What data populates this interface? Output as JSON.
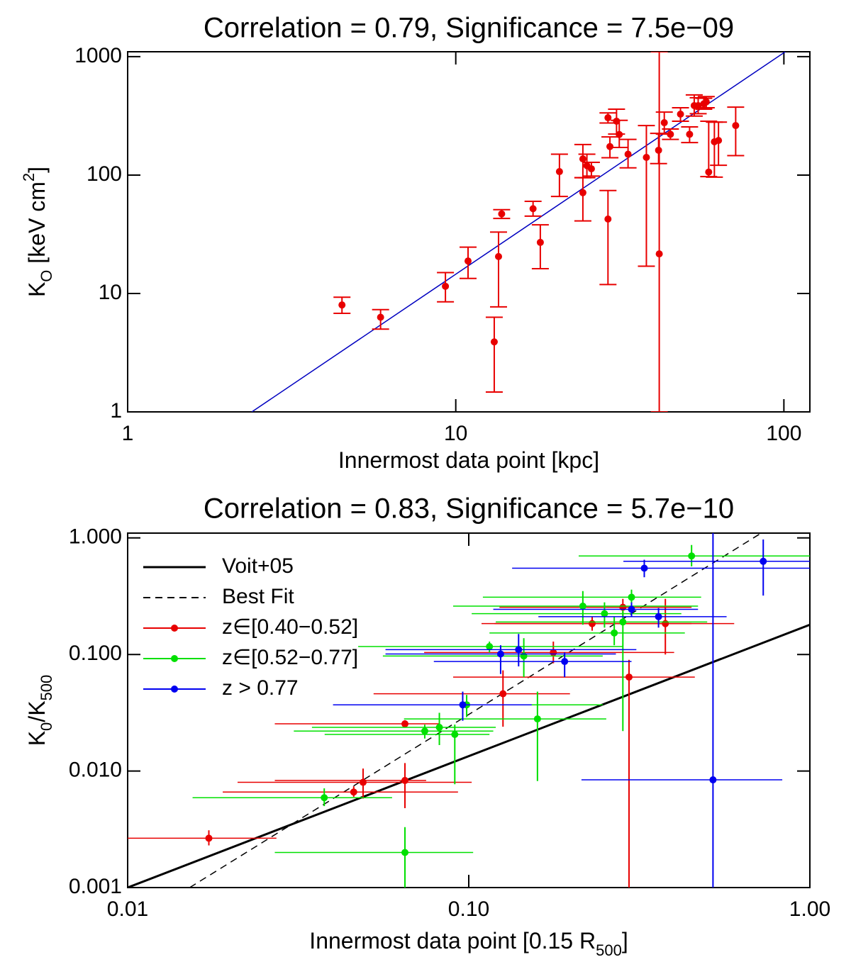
{
  "chart_data": [
    {
      "type": "scatter",
      "title": "Correlation = 0.79, Significance = 7.5e−09",
      "xlabel": [
        {
          "text": "Innermost data point [kpc]"
        }
      ],
      "ylabel": [
        {
          "text": "K"
        },
        {
          "text": "O",
          "sub": true
        },
        {
          "text": " [keV cm"
        },
        {
          "text": "2",
          "sup": true
        },
        {
          "text": "]"
        }
      ],
      "log": true,
      "caps": true,
      "legend": null,
      "xlim": [
        1,
        120
      ],
      "ylim": [
        1,
        1100
      ],
      "xticks": [
        1,
        10,
        100
      ],
      "yticks": [
        1,
        10,
        100,
        1000
      ],
      "series": [
        {
          "type": "line",
          "color": "#0000c0",
          "x": [
            2.39,
            101
          ],
          "values": [
            1,
            1100
          ]
        },
        {
          "type": "scatter",
          "color": "#e80000",
          "x": [
            4.5,
            5.9,
            9.3,
            10.9,
            13.1,
            13.5,
            13.8,
            17.2,
            18.1,
            20.7,
            24.4,
            24.4,
            25.1,
            25.9,
            29.1,
            29.1,
            29.5,
            30.9,
            31.5,
            33.5,
            38.1,
            41.5,
            41.7,
            43.2,
            45.1,
            48.4,
            51.6,
            53.3,
            54.8,
            57,
            58,
            59,
            61.4,
            63.2,
            71.3
          ],
          "values": [
            8.0,
            6.3,
            11.5,
            18.8,
            3.9,
            20.5,
            47,
            52,
            27,
            107,
            71,
            137,
            120,
            113,
            42.5,
            305,
            174,
            285,
            220,
            150,
            141,
            162,
            21.6,
            277,
            221,
            327,
            221,
            386,
            386,
            400,
            415,
            106,
            191,
            196,
            262
          ],
          "ylow": [
            6.8,
            5.0,
            8.5,
            13.4,
            1.47,
            7.7,
            43,
            45,
            16.2,
            66,
            41,
            95,
            95,
            98,
            11.9,
            275,
            140,
            222,
            171,
            115,
            17,
            125,
            1,
            222,
            200,
            285,
            188,
            315,
            330,
            360,
            370,
            97,
            96,
            121,
            146
          ],
          "yhigh": [
            9.3,
            7.3,
            15,
            24.6,
            6.3,
            33,
            51,
            60,
            38,
            150,
            95,
            181,
            150,
            128,
            74,
            335,
            210,
            360,
            290,
            200,
            262,
            225,
            1100,
            340,
            245,
            370,
            255,
            475,
            450,
            445,
            460,
            285,
            280,
            280,
            375
          ]
        }
      ]
    },
    {
      "type": "scatter",
      "title": "Correlation = 0.83, Significance = 5.7e−10",
      "xlabel": [
        {
          "text": "Innermost data point [0.15 R"
        },
        {
          "text": "500",
          "sub": true
        },
        {
          "text": "]"
        }
      ],
      "ylabel": [
        {
          "text": "K"
        },
        {
          "text": "0",
          "sub": true
        },
        {
          "text": "/K"
        },
        {
          "text": "500",
          "sub": true
        }
      ],
      "log": true,
      "caps": false,
      "legend": "top-left",
      "xlim": [
        0.01,
        1
      ],
      "ylim": [
        0.001,
        1.1
      ],
      "xticks": [
        0.01,
        {
          "value": 0.1,
          "label": "0.10"
        },
        {
          "value": 1,
          "label": "1.00"
        }
      ],
      "yticks": [
        0.001,
        {
          "value": 0.01,
          "label": "0.010"
        },
        {
          "value": 0.1,
          "label": "0.100"
        },
        {
          "value": 1,
          "label": "1.000"
        }
      ],
      "series": [
        {
          "type": "line",
          "name": "Voit+05",
          "color": "#000000",
          "width": 3,
          "x": [
            0.01,
            1
          ],
          "values": [
            0.001,
            0.18
          ]
        },
        {
          "type": "line",
          "name": "Best Fit",
          "color": "#000000",
          "dash": true,
          "x": [
            0.0152,
            0.72
          ],
          "values": [
            0.001,
            1.1
          ]
        },
        {
          "type": "scatter",
          "name": "z∈[0.40−0.52]",
          "color": "#e80000",
          "x": [
            0.0173,
            0.046,
            0.049,
            0.065,
            0.065,
            0.126,
            0.177,
            0.23,
            0.283,
            0.295,
            0.377
          ],
          "values": [
            0.00265,
            0.0066,
            0.008,
            0.0083,
            0.0254,
            0.046,
            0.104,
            0.184,
            0.254,
            0.064,
            0.184
          ],
          "xlow": [
            0.01,
            0.019,
            0.021,
            0.027,
            0.027,
            0.0526,
            0.074,
            0.119,
            0.123,
            0.09,
            0.109
          ],
          "xhigh": [
            0.0273,
            0.093,
            0.102,
            0.075,
            0.082,
            0.198,
            0.4,
            0.45,
            0.45,
            0.46,
            0.6
          ],
          "ylow": [
            0.0023,
            0.006,
            0.0058,
            0.0048,
            0.0236,
            0.024,
            0.084,
            0.16,
            0.21,
            0.001,
            0.1
          ],
          "yhigh": [
            0.0031,
            0.0074,
            0.0105,
            0.0117,
            0.0273,
            0.073,
            0.129,
            0.21,
            0.3,
            0.09,
            0.3
          ]
        },
        {
          "type": "scatter",
          "name": "z∈[0.52−0.77]",
          "color": "#00e000",
          "x": [
            0.0377,
            0.065,
            0.0743,
            0.082,
            0.091,
            0.0986,
            0.115,
            0.145,
            0.159,
            0.216,
            0.25,
            0.267,
            0.283,
            0.3,
            0.45
          ],
          "values": [
            0.0059,
            0.002,
            0.022,
            0.0237,
            0.0206,
            0.037,
            0.117,
            0.097,
            0.028,
            0.26,
            0.224,
            0.153,
            0.19,
            0.31,
            0.7
          ],
          "xlow": [
            0.0155,
            0.027,
            0.0307,
            0.0347,
            0.0378,
            0.042,
            0.0474,
            0.056,
            0.0646,
            0.09,
            0.102,
            0.115,
            0.12,
            0.11,
            0.21
          ],
          "xhigh": [
            0.0596,
            0.103,
            0.118,
            0.12,
            0.115,
            0.247,
            0.284,
            0.247,
            0.253,
            0.47,
            0.42,
            0.43,
            0.5,
            0.48,
            1.0
          ],
          "ylow": [
            0.005,
            0.001,
            0.019,
            0.0167,
            0.0077,
            0.029,
            0.104,
            0.064,
            0.0082,
            0.18,
            0.17,
            0.12,
            0.022,
            0.26,
            0.57
          ],
          "yhigh": [
            0.0071,
            0.0033,
            0.025,
            0.0316,
            0.025,
            0.045,
            0.129,
            0.138,
            0.048,
            0.35,
            0.28,
            0.21,
            0.24,
            0.36,
            0.87
          ]
        },
        {
          "type": "scatter",
          "name": "z > 0.77",
          "color": "#0000f0",
          "x": [
            0.096,
            0.124,
            0.14,
            0.191,
            0.3,
            0.327,
            0.36,
            0.52,
            0.73
          ],
          "values": [
            0.037,
            0.101,
            0.11,
            0.087,
            0.244,
            0.55,
            0.211,
            0.0084,
            0.63
          ],
          "xlow": [
            0.04,
            0.057,
            0.057,
            0.079,
            0.118,
            0.134,
            0.16,
            0.214,
            0.284
          ],
          "xhigh": [
            0.153,
            0.27,
            0.31,
            0.3,
            0.47,
            1.0,
            0.57,
            0.83,
            1.0
          ],
          "ylow": [
            0.027,
            0.068,
            0.079,
            0.064,
            0.21,
            0.46,
            0.17,
            0.001,
            0.32
          ],
          "yhigh": [
            0.048,
            0.12,
            0.15,
            0.104,
            0.28,
            0.65,
            0.25,
            1.1,
            0.97
          ]
        }
      ]
    }
  ]
}
